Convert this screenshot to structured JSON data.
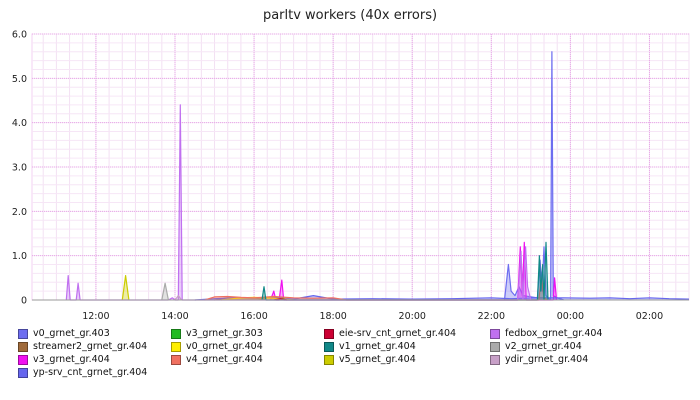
{
  "chart_data": {
    "type": "line",
    "title": "parltv workers (40x errors)",
    "xlabel": "",
    "ylabel": "",
    "x_unit": "time (HH:MM)",
    "xlim": [
      "10:23",
      "03:00"
    ],
    "ylim": [
      0,
      6
    ],
    "x_ticks": [
      "12:00",
      "14:00",
      "16:00",
      "18:00",
      "20:00",
      "22:00",
      "00:00",
      "02:00"
    ],
    "y_ticks": [
      "0",
      "1.0",
      "2.0",
      "3.0",
      "4.0",
      "5.0",
      "6.0"
    ],
    "grid": true,
    "legend_position": "bottom",
    "series": [
      {
        "name": "v0_grnet_gr.403",
        "color": "#6d6df0",
        "points": [
          [
            "22:20",
            0
          ],
          [
            "22:26",
            0.8
          ],
          [
            "22:30",
            0.2
          ],
          [
            "22:36",
            0.1
          ],
          [
            "22:42",
            0.3
          ],
          [
            "22:48",
            0.1
          ],
          [
            "23:10",
            0.05
          ],
          [
            "23:14",
            0.9
          ],
          [
            "23:17",
            0.2
          ],
          [
            "23:20",
            1.2
          ],
          [
            "23:23",
            0.1
          ],
          [
            "23:30",
            0
          ],
          [
            "23:32",
            5.6
          ],
          [
            "23:34",
            0.1
          ],
          [
            "23:40",
            0.05
          ],
          [
            "23:50",
            0
          ]
        ]
      },
      {
        "name": "streamer2_grnet_gr.404",
        "color": "#a06a3a",
        "points": [
          [
            "15:00",
            0
          ],
          [
            "15:20",
            0.05
          ],
          [
            "16:00",
            0.05
          ],
          [
            "16:20",
            0
          ]
        ]
      },
      {
        "name": "v3_grnet_gr.404",
        "color": "#f010f0",
        "points": [
          [
            "16:25",
            0
          ],
          [
            "16:30",
            0.2
          ],
          [
            "16:33",
            0
          ],
          [
            "16:38",
            0
          ],
          [
            "16:42",
            0.45
          ],
          [
            "16:45",
            0
          ],
          [
            "22:40",
            0
          ],
          [
            "22:44",
            1.2
          ],
          [
            "22:47",
            0.1
          ],
          [
            "22:50",
            1.3
          ],
          [
            "22:53",
            0
          ],
          [
            "23:34",
            0
          ],
          [
            "23:36",
            0.5
          ],
          [
            "23:39",
            0
          ]
        ]
      },
      {
        "name": "yp-srv_cnt_grnet_gr.404",
        "color": "#6666ee",
        "points": [
          [
            "14:30",
            0
          ],
          [
            "15:00",
            0.03
          ],
          [
            "15:30",
            0.05
          ],
          [
            "16:00",
            0.04
          ],
          [
            "16:30",
            0.06
          ],
          [
            "17:00",
            0.02
          ],
          [
            "17:30",
            0.1
          ],
          [
            "18:00",
            0.02
          ],
          [
            "19:00",
            0.03
          ],
          [
            "20:00",
            0.02
          ],
          [
            "21:00",
            0.03
          ],
          [
            "22:00",
            0.05
          ],
          [
            "22:30",
            0.03
          ],
          [
            "23:10",
            0.05
          ],
          [
            "23:50",
            0.05
          ],
          [
            "00:30",
            0.04
          ],
          [
            "01:00",
            0.05
          ],
          [
            "01:30",
            0.03
          ],
          [
            "02:00",
            0.05
          ],
          [
            "02:30",
            0.03
          ],
          [
            "03:00",
            0.02
          ]
        ]
      },
      {
        "name": "v3_grnet_gr.303",
        "color": "#22bb22",
        "points": [
          [
            "16:40",
            0
          ],
          [
            "16:44",
            0.05
          ],
          [
            "16:48",
            0
          ]
        ]
      },
      {
        "name": "v0_grnet_gr.404",
        "color": "#ffee00",
        "points": [
          [
            "15:10",
            0
          ],
          [
            "15:40",
            0.05
          ],
          [
            "16:00",
            0.06
          ],
          [
            "16:30",
            0.04
          ],
          [
            "17:00",
            0
          ]
        ]
      },
      {
        "name": "v4_grnet_gr.404",
        "color": "#f07060",
        "points": [
          [
            "14:45",
            0
          ],
          [
            "15:00",
            0.07
          ],
          [
            "15:20",
            0.08
          ],
          [
            "15:40",
            0.06
          ],
          [
            "16:00",
            0.05
          ],
          [
            "16:30",
            0.08
          ],
          [
            "17:00",
            0.05
          ],
          [
            "17:30",
            0.04
          ],
          [
            "18:00",
            0.05
          ],
          [
            "18:20",
            0
          ],
          [
            "23:12",
            0
          ],
          [
            "23:16",
            0.5
          ],
          [
            "23:20",
            0.05
          ],
          [
            "23:25",
            0
          ]
        ]
      },
      {
        "name": "eie-srv_cnt_grnet_gr.404",
        "color": "#cc0033",
        "points": [
          [
            "16:30",
            0
          ],
          [
            "16:40",
            0.03
          ],
          [
            "16:50",
            0
          ]
        ]
      },
      {
        "name": "v1_grnet_gr.404",
        "color": "#118888",
        "points": [
          [
            "16:12",
            0
          ],
          [
            "16:15",
            0.3
          ],
          [
            "16:18",
            0
          ],
          [
            "23:10",
            0
          ],
          [
            "23:13",
            1.0
          ],
          [
            "23:15",
            0.2
          ],
          [
            "23:18",
            0.8
          ],
          [
            "23:20",
            0
          ],
          [
            "23:23",
            1.3
          ],
          [
            "23:26",
            0
          ]
        ]
      },
      {
        "name": "v5_grnet_gr.404",
        "color": "#cccc00",
        "points": [
          [
            "12:40",
            0
          ],
          [
            "12:45",
            0.55
          ],
          [
            "12:50",
            0
          ]
        ]
      },
      {
        "name": "fedbox_grnet_gr.404",
        "color": "#c070f0",
        "points": [
          [
            "11:15",
            0
          ],
          [
            "11:18",
            0.55
          ],
          [
            "11:21",
            0
          ],
          [
            "11:30",
            0
          ],
          [
            "11:33",
            0.38
          ],
          [
            "11:36",
            0
          ],
          [
            "13:50",
            0
          ],
          [
            "13:56",
            0.05
          ],
          [
            "14:00",
            0
          ],
          [
            "14:05",
            0
          ],
          [
            "14:08",
            4.4
          ],
          [
            "14:11",
            0
          ],
          [
            "22:40",
            0
          ],
          [
            "22:45",
            1.1
          ],
          [
            "22:48",
            0
          ],
          [
            "22:52",
            1.2
          ],
          [
            "22:55",
            0.3
          ],
          [
            "23:00",
            0
          ]
        ]
      },
      {
        "name": "v2_grnet_gr.404",
        "color": "#aaaaaa",
        "points": [
          [
            "13:40",
            0
          ],
          [
            "13:45",
            0.38
          ],
          [
            "13:50",
            0
          ]
        ]
      },
      {
        "name": "ydir_grnet_gr.404",
        "color": "#c8a0c8",
        "points": [
          [
            "14:00",
            0
          ],
          [
            "14:05",
            0.1
          ],
          [
            "14:10",
            0
          ]
        ]
      }
    ]
  }
}
